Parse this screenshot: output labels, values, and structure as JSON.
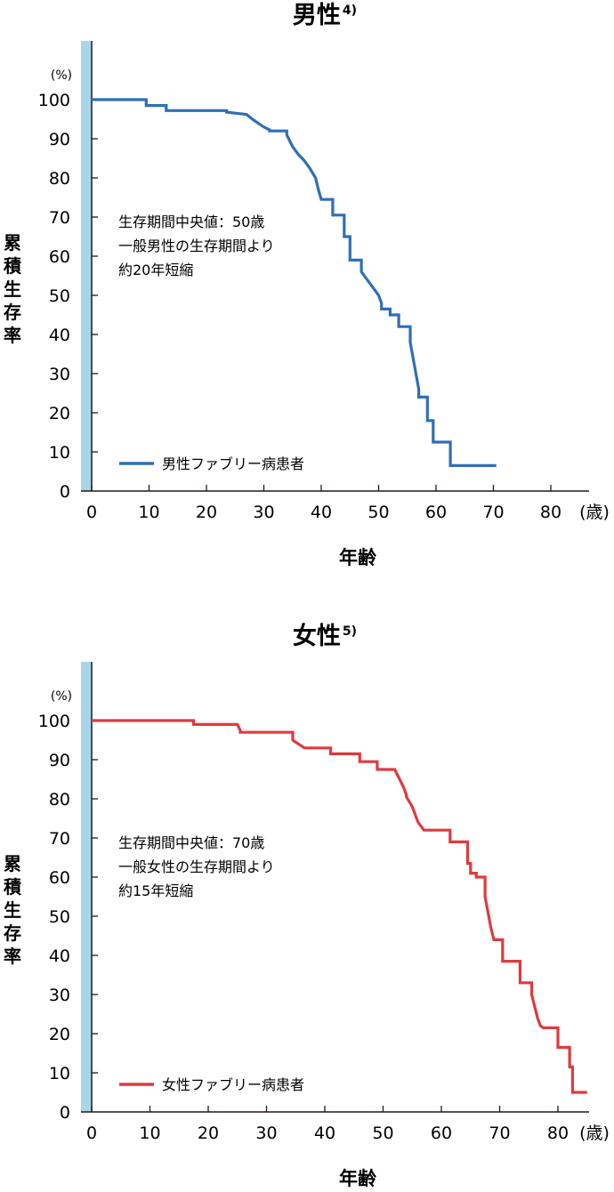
{
  "chart_data": [
    {
      "type": "line",
      "title": "男性",
      "title_ref": "4)",
      "ylabel": "累積生存率",
      "ylabel_unit": "(%)",
      "xlabel": "年齢",
      "xlabel_unit": "(歳)",
      "xlim": [
        0,
        85
      ],
      "ylim": [
        0,
        100
      ],
      "x_ticks": [
        "0",
        "10",
        "20",
        "30",
        "40",
        "50",
        "60",
        "70",
        "80"
      ],
      "y_ticks": [
        "0",
        "10",
        "20",
        "30",
        "40",
        "50",
        "60",
        "70",
        "80",
        "90",
        "100"
      ],
      "annotation": [
        "生存期間中央値：50歳",
        "一般男性の生存期間より",
        "約20年短縮"
      ],
      "legend_position": "bottom-left",
      "series": [
        {
          "name": "男性ファブリー病患者",
          "color": "#2f6fb5",
          "x": [
            0,
            9.5,
            9.5,
            13,
            13,
            23.5,
            23.5,
            27,
            28,
            29,
            30,
            31,
            31,
            34,
            34,
            35,
            36,
            37,
            38,
            39,
            39.5,
            40,
            40,
            42,
            42,
            44,
            44,
            45,
            45,
            47,
            47,
            48,
            49,
            50,
            50.5,
            50.5,
            52,
            52,
            53.5,
            53.5,
            55.5,
            55.5,
            56,
            56.5,
            57,
            57,
            58.5,
            58.5,
            59.5,
            59.5,
            62.5,
            62.5,
            70.5
          ],
          "y": [
            100,
            100,
            98.5,
            98.5,
            97.2,
            97.2,
            96.8,
            96.2,
            95,
            94,
            93,
            92.3,
            92,
            92,
            91,
            88,
            86,
            84.5,
            82.5,
            80,
            77,
            74.5,
            74.5,
            74.5,
            70.5,
            70.5,
            65,
            65,
            59,
            59,
            56,
            54,
            52,
            50,
            48,
            46.5,
            46.5,
            45,
            45,
            42,
            42,
            38,
            34,
            30,
            26,
            24,
            24,
            18,
            18,
            12.5,
            12.5,
            6.5,
            6.5
          ]
        }
      ]
    },
    {
      "type": "line",
      "title": "女性",
      "title_ref": "5)",
      "ylabel": "累積生存率",
      "ylabel_unit": "(%)",
      "xlabel": "年齢",
      "xlabel_unit": "(歳)",
      "xlim": [
        0,
        85
      ],
      "ylim": [
        0,
        100
      ],
      "x_ticks": [
        "0",
        "10",
        "20",
        "30",
        "40",
        "50",
        "60",
        "70",
        "80"
      ],
      "y_ticks": [
        "0",
        "10",
        "20",
        "30",
        "40",
        "50",
        "60",
        "70",
        "80",
        "90",
        "100"
      ],
      "annotation": [
        "生存期間中央値：70歳",
        "一般女性の生存期間より",
        "約15年短縮"
      ],
      "legend_position": "bottom-left",
      "series": [
        {
          "name": "女性ファブリー病患者",
          "color": "#e03a3e",
          "x": [
            0,
            17.5,
            17.5,
            25,
            25.5,
            25.5,
            34.5,
            34.5,
            35.5,
            36.5,
            36.5,
            41,
            41,
            46,
            46,
            49,
            49,
            52,
            52.5,
            53.5,
            54,
            54,
            55,
            55.5,
            56,
            57,
            57,
            61.5,
            61.5,
            64.5,
            64.5,
            65,
            65,
            66,
            66,
            67.5,
            67.5,
            68,
            68.5,
            69,
            69,
            70.5,
            70.5,
            73.5,
            73.5,
            75.5,
            75.5,
            76,
            76.5,
            77,
            77.5,
            77.5,
            80,
            80,
            82,
            82,
            82.5,
            82.5,
            85
          ],
          "y": [
            100,
            100,
            99,
            99,
            97.5,
            97,
            97,
            95,
            94,
            93,
            93,
            93,
            91.5,
            91.5,
            89.5,
            89.5,
            87.5,
            87.5,
            86,
            83,
            81,
            80.5,
            78,
            76,
            74,
            72,
            72,
            72,
            69,
            69,
            63.5,
            63.5,
            61,
            61,
            60,
            60,
            55,
            51,
            47,
            44,
            44,
            44,
            38.5,
            38.5,
            33,
            33,
            30,
            27,
            24,
            22,
            21.5,
            21.5,
            21.5,
            16.5,
            16.5,
            11.5,
            11.5,
            5,
            5
          ]
        }
      ]
    }
  ]
}
